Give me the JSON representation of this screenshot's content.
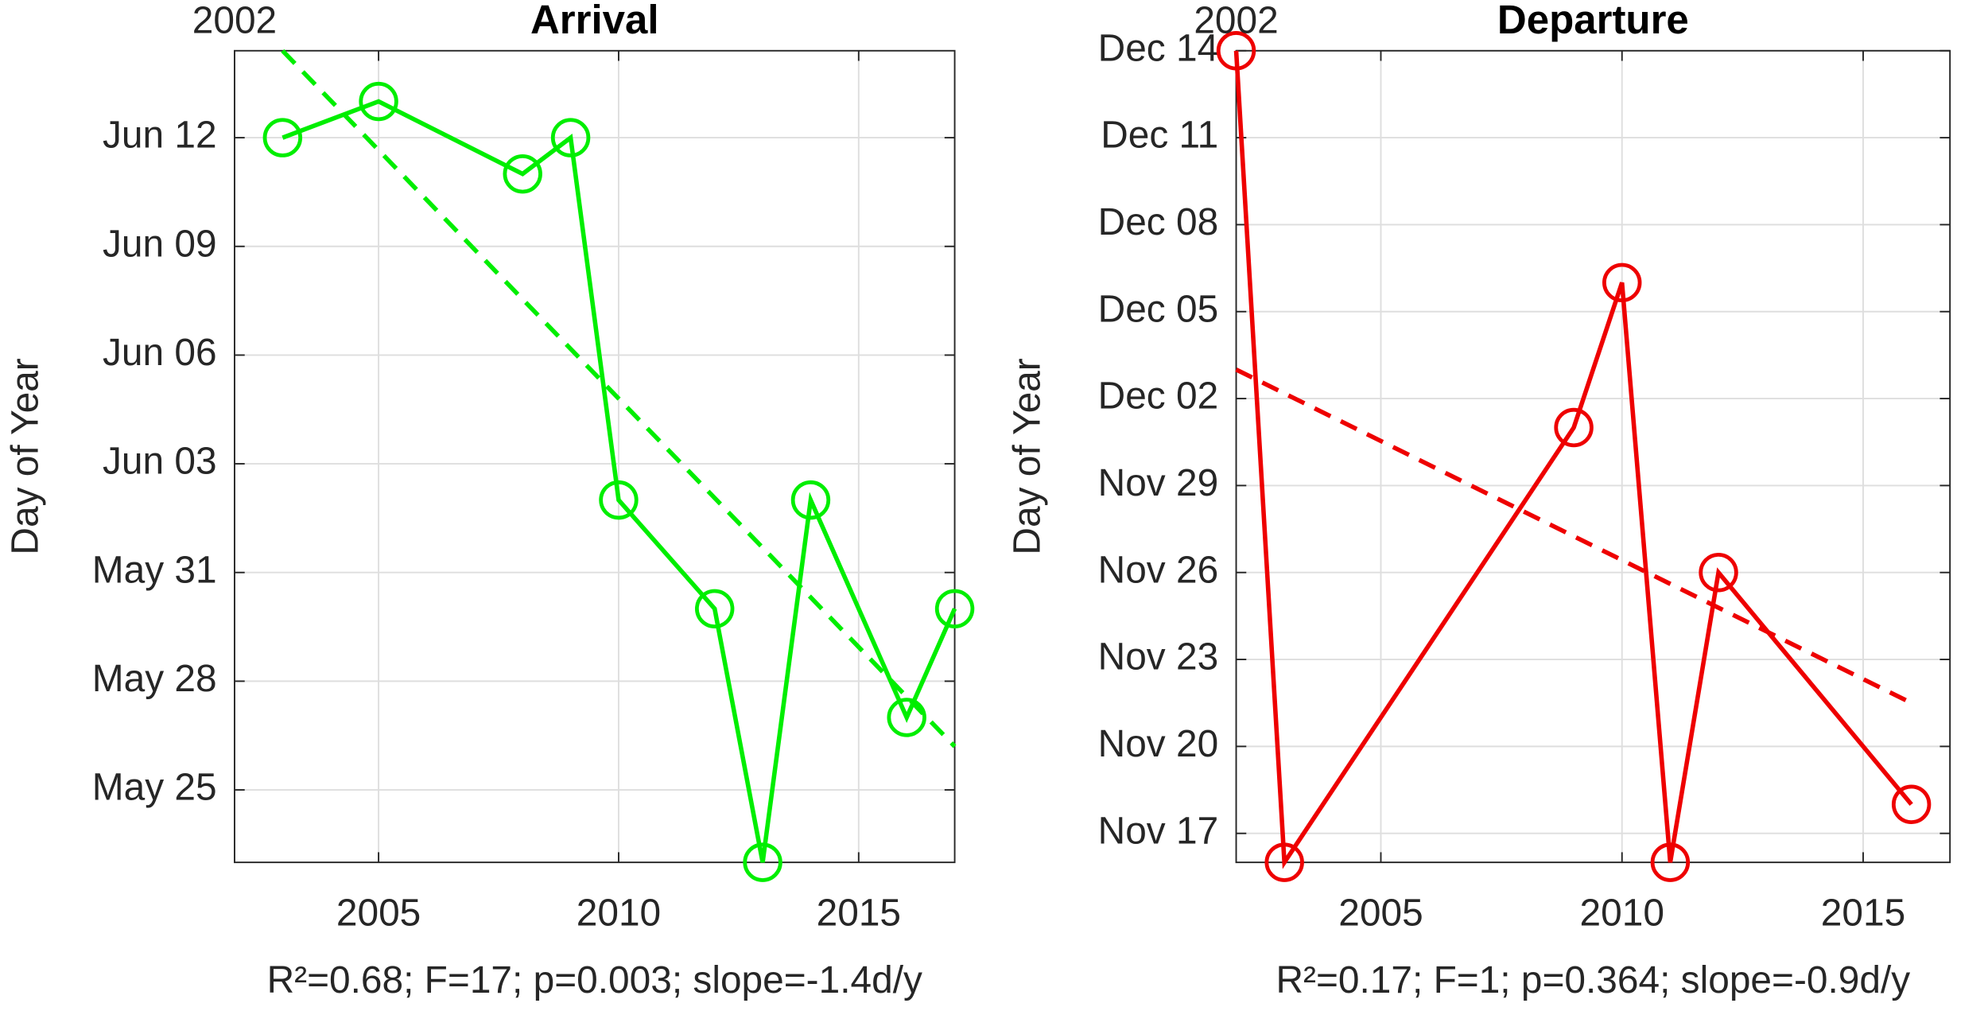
{
  "chart_data": [
    {
      "type": "line",
      "title": "Arrival",
      "corner_label": "2002",
      "y_label": "Day of Year",
      "footer": "R²=0.68; F=17; p=0.003; slope=-1.4d/y",
      "x": [
        2003,
        2005,
        2008,
        2009,
        2010,
        2012,
        2013,
        2014,
        2016,
        2017
      ],
      "values": [
        163,
        164,
        162,
        163,
        153,
        150,
        143,
        153,
        147,
        150
      ],
      "color": "#00ee00",
      "trend": {
        "x": [
          2003,
          2017
        ],
        "values": [
          165.4,
          146.2
        ]
      },
      "xlim": [
        2002,
        2017
      ],
      "xticks": [
        2005,
        2010,
        2015
      ],
      "ylim": [
        143,
        165.4
      ],
      "yticks": [
        {
          "value": 145,
          "label": "May 25"
        },
        {
          "value": 148,
          "label": "May 28"
        },
        {
          "value": 151,
          "label": "May 31"
        },
        {
          "value": 154,
          "label": "Jun 03"
        },
        {
          "value": 157,
          "label": "Jun 06"
        },
        {
          "value": 160,
          "label": "Jun 09"
        },
        {
          "value": 163,
          "label": "Jun 12"
        }
      ],
      "grid": true
    },
    {
      "type": "line",
      "title": "Departure",
      "corner_label": "2002",
      "y_label": "Day of Year",
      "footer": "R²=0.17; F=1; p=0.364; slope=-0.9d/y",
      "x": [
        2002,
        2003,
        2009,
        2010,
        2011,
        2012,
        2016
      ],
      "values": [
        348,
        320,
        335,
        340,
        320,
        330,
        322
      ],
      "color": "#ee0000",
      "trend": {
        "x": [
          2002,
          2016
        ],
        "values": [
          337,
          325.5
        ]
      },
      "xlim": [
        2002,
        2016.8
      ],
      "xticks": [
        2005,
        2010,
        2015
      ],
      "ylim": [
        320,
        348
      ],
      "yticks": [
        {
          "value": 321,
          "label": "Nov 17"
        },
        {
          "value": 324,
          "label": "Nov 20"
        },
        {
          "value": 327,
          "label": "Nov 23"
        },
        {
          "value": 330,
          "label": "Nov 26"
        },
        {
          "value": 333,
          "label": "Nov 29"
        },
        {
          "value": 336,
          "label": "Dec 02"
        },
        {
          "value": 339,
          "label": "Dec 05"
        },
        {
          "value": 342,
          "label": "Dec 08"
        },
        {
          "value": 345,
          "label": "Dec 11"
        },
        {
          "value": 348,
          "label": "Dec 14"
        }
      ],
      "grid": true
    }
  ]
}
